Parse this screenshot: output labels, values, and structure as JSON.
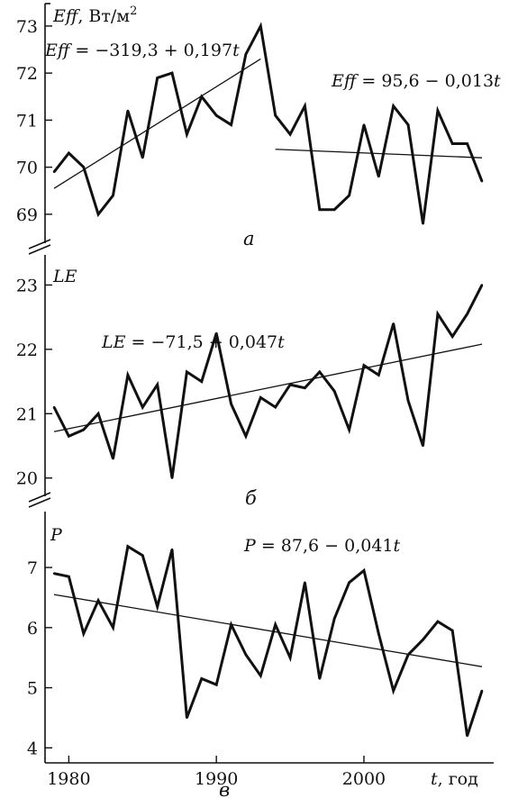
{
  "chart_data": [
    {
      "type": "line",
      "panel_label": "а",
      "ylabel": "Eff, Вт/м²",
      "ylabel_parts": {
        "var": "Eff",
        "unit": ", Вт/м",
        "sup": "2"
      },
      "ylim": [
        68.5,
        73.4
      ],
      "yticks": [
        69,
        70,
        71,
        72,
        73
      ],
      "x": [
        1979,
        1980,
        1981,
        1982,
        1983,
        1984,
        1985,
        1986,
        1987,
        1988,
        1989,
        1990,
        1991,
        1992,
        1993,
        1994,
        1995,
        1996,
        1997,
        1998,
        1999,
        2000,
        2001,
        2002,
        2003,
        2004,
        2005,
        2006,
        2007,
        2008
      ],
      "values": [
        69.9,
        70.3,
        70.0,
        69.0,
        69.4,
        71.2,
        70.2,
        71.9,
        72.0,
        70.7,
        71.5,
        71.1,
        70.9,
        72.4,
        73.0,
        71.1,
        70.7,
        71.3,
        69.1,
        69.1,
        69.4,
        70.9,
        69.8,
        71.3,
        70.9,
        68.8,
        71.2,
        70.5,
        70.5,
        69.7
      ],
      "trends": [
        {
          "equation": "Eff = −319,3 + 0,197t",
          "eq_var": "Eff",
          "eq_rest": " = −319,3 + 0,197",
          "eq_t": "t",
          "x": [
            1979,
            1993
          ],
          "y": [
            69.55,
            72.3
          ]
        },
        {
          "equation": "Eff = 95,6 − 0,013t",
          "eq_var": "Eff",
          "eq_rest": " = 95,6 − 0,013",
          "eq_t": "t",
          "x": [
            1994,
            2008
          ],
          "y": [
            70.38,
            70.2
          ]
        }
      ]
    },
    {
      "type": "line",
      "panel_label": "б",
      "ylabel": "LE",
      "ylim": [
        19.8,
        23.3
      ],
      "yticks": [
        20,
        21,
        22,
        23
      ],
      "x": [
        1979,
        1980,
        1981,
        1982,
        1983,
        1984,
        1985,
        1986,
        1987,
        1988,
        1989,
        1990,
        1991,
        1992,
        1993,
        1994,
        1995,
        1996,
        1997,
        1998,
        1999,
        2000,
        2001,
        2002,
        2003,
        2004,
        2005,
        2006,
        2007,
        2008
      ],
      "values": [
        21.1,
        20.65,
        20.75,
        21.0,
        20.3,
        21.6,
        21.1,
        21.45,
        20.0,
        21.65,
        21.5,
        22.25,
        21.15,
        20.65,
        21.25,
        21.1,
        21.45,
        21.4,
        21.65,
        21.35,
        20.75,
        21.75,
        21.6,
        22.4,
        21.2,
        20.5,
        22.55,
        22.2,
        22.55,
        23.0
      ],
      "trends": [
        {
          "equation": "LE = −71,5 + 0,047t",
          "eq_var": "LE",
          "eq_rest": " = −71,5 + 0,047",
          "eq_t": "t",
          "x": [
            1979,
            2008
          ],
          "y": [
            20.72,
            22.08
          ]
        }
      ]
    },
    {
      "type": "line",
      "panel_label": "в",
      "ylabel": "P",
      "ylim": [
        3.75,
        7.75
      ],
      "yticks": [
        4,
        5,
        6,
        7
      ],
      "xticks": [
        1980,
        1990,
        2000
      ],
      "xlabel": "t, год",
      "xlabel_parts": {
        "var": "t",
        "unit": ", год"
      },
      "x": [
        1979,
        1980,
        1981,
        1982,
        1983,
        1984,
        1985,
        1986,
        1987,
        1988,
        1989,
        1990,
        1991,
        1992,
        1993,
        1994,
        1995,
        1996,
        1997,
        1998,
        1999,
        2000,
        2001,
        2002,
        2003,
        2004,
        2005,
        2006,
        2007,
        2008
      ],
      "values": [
        6.9,
        6.85,
        5.9,
        6.45,
        6.0,
        7.35,
        7.2,
        6.35,
        7.3,
        4.5,
        5.15,
        5.05,
        6.05,
        5.55,
        5.2,
        6.05,
        5.5,
        6.75,
        5.15,
        6.15,
        6.75,
        6.95,
        5.9,
        4.95,
        5.55,
        5.8,
        6.1,
        5.95,
        4.2,
        4.95
      ],
      "trends": [
        {
          "equation": "P = 87,6 − 0,041t",
          "eq_var": "P",
          "eq_rest": " = 87,6 − 0,041",
          "eq_t": "t",
          "x": [
            1979,
            2008
          ],
          "y": [
            6.55,
            5.35
          ]
        }
      ]
    }
  ]
}
